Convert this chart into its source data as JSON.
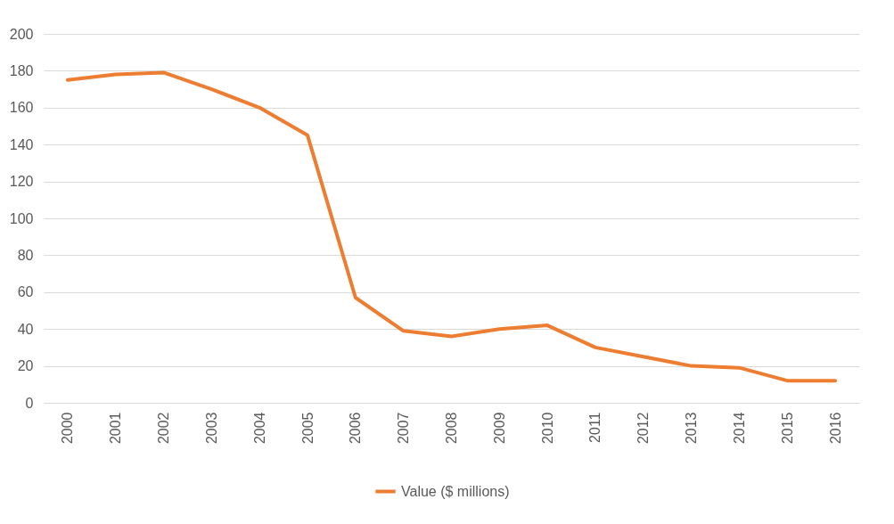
{
  "chart_data": {
    "type": "line",
    "categories": [
      "2000",
      "2001",
      "2002",
      "2003",
      "2004",
      "2005",
      "2006",
      "2007",
      "2008",
      "2009",
      "2010",
      "2011",
      "2012",
      "2013",
      "2014",
      "2015",
      "2016"
    ],
    "series": [
      {
        "name": "Value ($ millions)",
        "color": "#ed7d31",
        "values": [
          175,
          178,
          179,
          170,
          160,
          145,
          57,
          39,
          36,
          40,
          42,
          30,
          25,
          20,
          19,
          12,
          12
        ]
      }
    ],
    "ylim": [
      0,
      200
    ],
    "yticks": [
      0,
      20,
      40,
      60,
      80,
      100,
      120,
      140,
      160,
      180,
      200
    ],
    "grid": "y",
    "legend": "bottom",
    "marker": "none",
    "line_style": "solid"
  }
}
